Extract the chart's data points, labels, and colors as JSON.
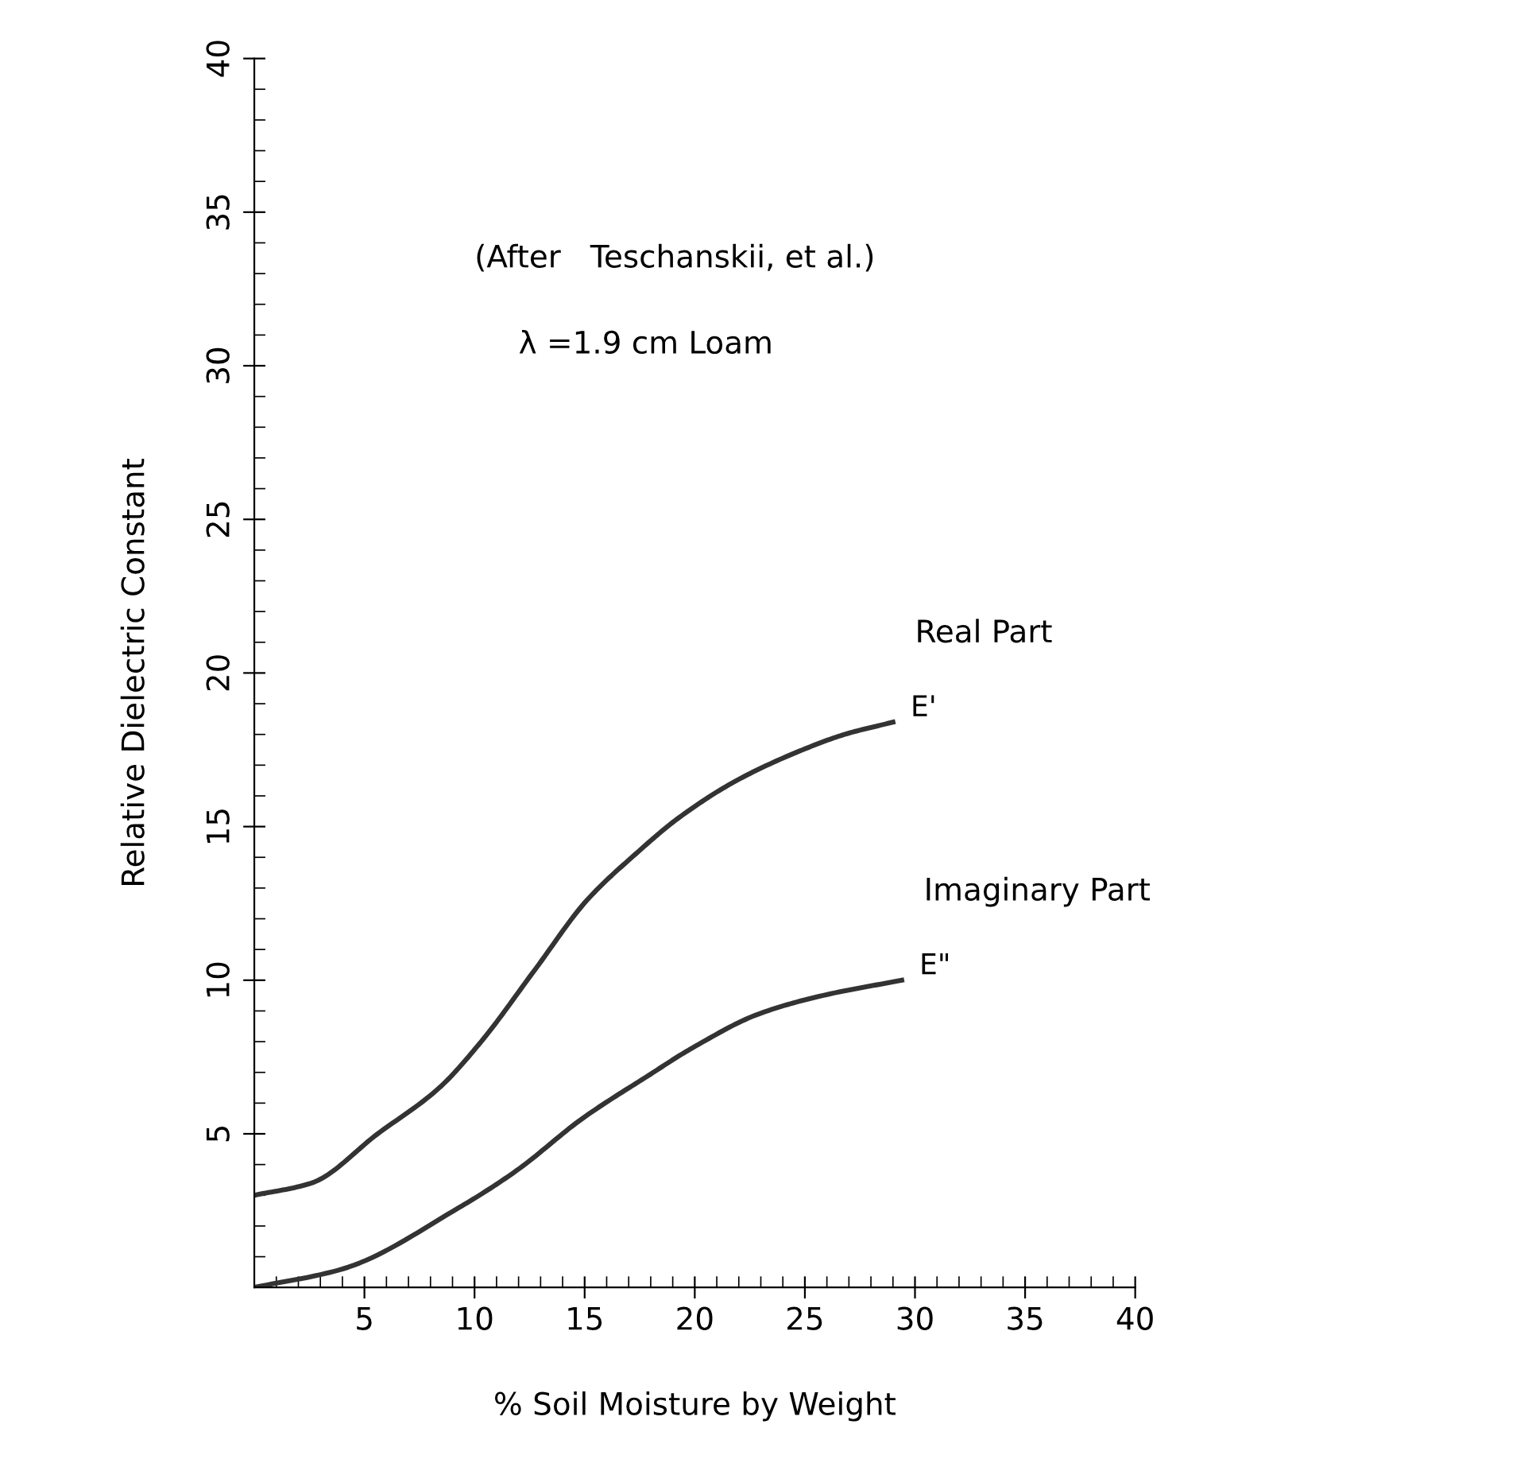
{
  "chart_data": {
    "type": "line",
    "xlabel": "% Soil Moisture by Weight",
    "ylabel": "Relative Dielectric Constant",
    "series": [
      {
        "name": "E'",
        "color": "#333333",
        "x": [
          0,
          2.6,
          5.6,
          8.4,
          10.3,
          12.7,
          15.1,
          17.3,
          19.3,
          21.9,
          24.9,
          26.8,
          29
        ],
        "values": [
          3.0,
          3.4,
          5.0,
          6.5,
          8.0,
          10.3,
          12.6,
          14.1,
          15.3,
          16.5,
          17.5,
          18.0,
          18.4
        ]
      },
      {
        "name": "E\"",
        "color": "#333333",
        "x": [
          0,
          4,
          9.3,
          11.9,
          14.9,
          17.9,
          19.9,
          22.9,
          25.8,
          29.4
        ],
        "values": [
          0,
          0.6,
          2.6,
          3.8,
          5.5,
          6.9,
          7.8,
          8.9,
          9.5,
          10.0
        ]
      }
    ],
    "annotations": [
      "(After   Teschanskii, et al.)",
      "λ =1.9 cm Loam",
      "Real Part",
      "Imaginary Part"
    ],
    "xlim": [
      0,
      40
    ],
    "ylim": [
      0,
      40
    ],
    "xticks": [
      5,
      10,
      15,
      20,
      25,
      30,
      35,
      40
    ],
    "yticks": [
      5,
      10,
      15,
      20,
      25,
      30,
      35,
      40
    ],
    "grid": false,
    "legend": false,
    "marker": "none",
    "line_style": "solid"
  }
}
